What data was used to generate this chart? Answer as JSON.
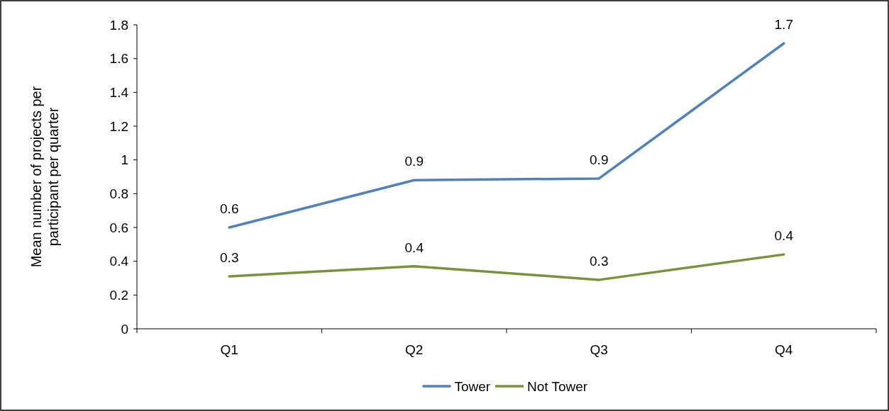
{
  "chart_data": {
    "type": "line",
    "ylabel": "Mean number of  projects per participant per quarter",
    "categories": [
      "Q1",
      "Q2",
      "Q3",
      "Q4"
    ],
    "series": [
      {
        "name": "Tower",
        "color": "#4f81bd",
        "values": [
          0.6,
          0.88,
          0.89,
          1.69
        ],
        "value_labels": [
          "0.6",
          "0.9",
          "0.9",
          "1.7"
        ]
      },
      {
        "name": "Not Tower",
        "color": "#77933c",
        "values": [
          0.31,
          0.37,
          0.29,
          0.44
        ],
        "value_labels": [
          "0.3",
          "0.4",
          "0.3",
          "0.4"
        ]
      }
    ],
    "ylim": [
      0,
      1.8
    ],
    "yticks": [
      0,
      0.2,
      0.4,
      0.6,
      0.8,
      1,
      1.2,
      1.4,
      1.6,
      1.8
    ],
    "grid": false,
    "legend": "bottom",
    "marker": "none",
    "line_style": "solid"
  }
}
